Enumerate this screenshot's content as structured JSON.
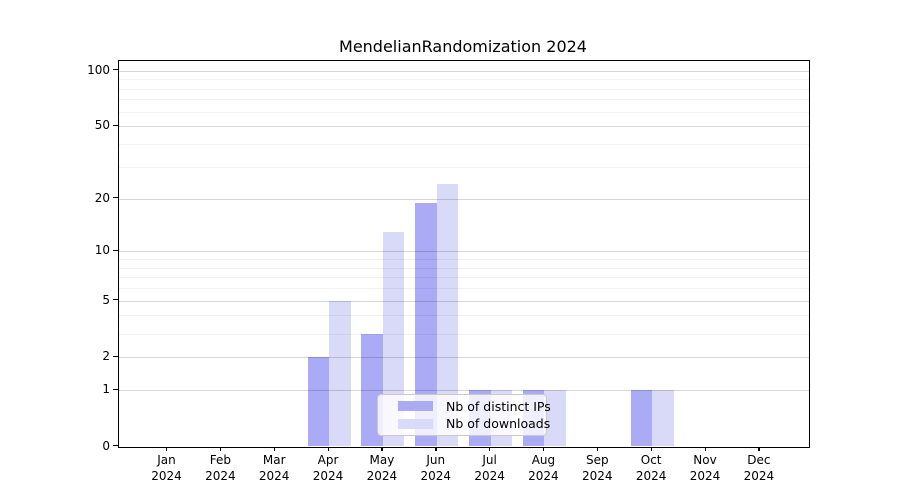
{
  "chart_data": {
    "type": "bar",
    "title": "MendelianRandomization 2024",
    "x": {
      "categories": [
        "Jan",
        "Feb",
        "Mar",
        "Apr",
        "May",
        "Jun",
        "Jul",
        "Aug",
        "Sep",
        "Oct",
        "Nov",
        "Dec"
      ],
      "year": "2024"
    },
    "series": [
      {
        "name": "Nb of distinct IPs",
        "color": "#aaaaf5",
        "values": [
          0,
          0,
          0,
          2,
          3,
          19,
          1,
          1,
          0,
          1,
          0,
          0
        ]
      },
      {
        "name": "Nb of downloads",
        "color": "#d9d9f8",
        "values": [
          0,
          0,
          0,
          5,
          13,
          24,
          1,
          1,
          0,
          1,
          0,
          0
        ]
      }
    ],
    "y_axis": {
      "scale": "log10(value+1)",
      "tick_values": [
        0,
        1,
        2,
        5,
        10,
        20,
        50,
        100
      ],
      "tick_labels": [
        "0",
        "1",
        "2",
        "5",
        "10",
        "20",
        "50",
        "100"
      ],
      "minor_grid_values": [
        3,
        4,
        6,
        7,
        8,
        9,
        30,
        40,
        60,
        70,
        80,
        90
      ],
      "ylim": [
        0,
        110
      ]
    },
    "legend": {
      "position": "bottom-center",
      "entries": [
        "Nb of distinct IPs",
        "Nb of downloads"
      ]
    },
    "grid": true
  }
}
